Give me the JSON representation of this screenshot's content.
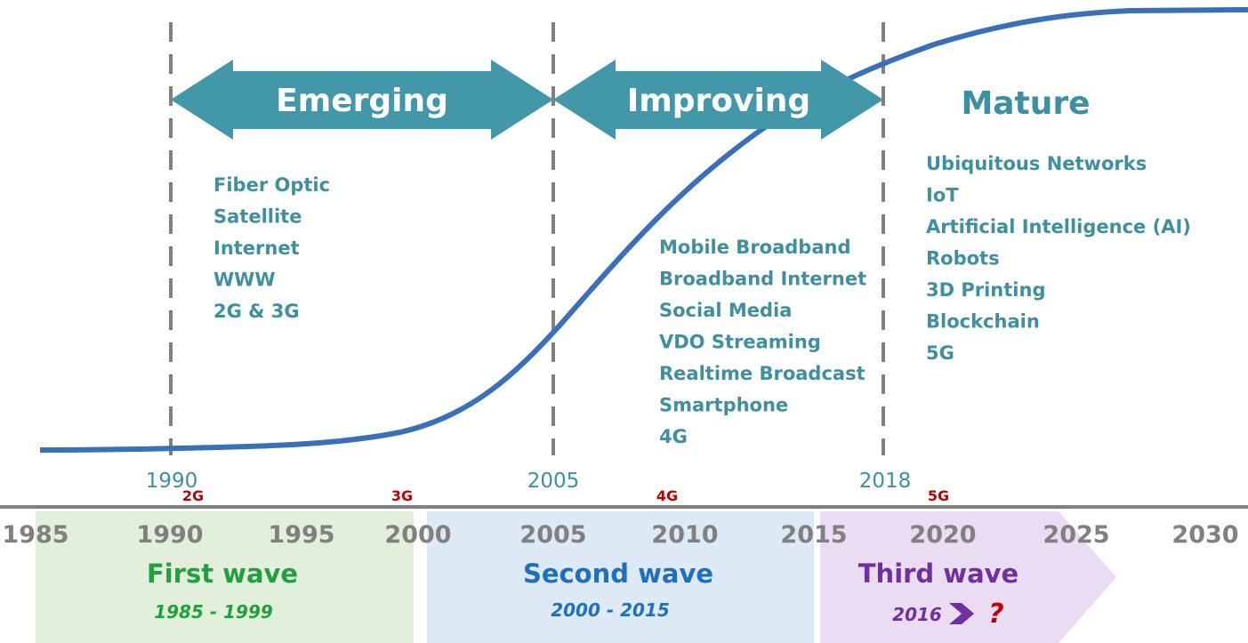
{
  "phases": [
    {
      "label": "Emerging",
      "items": [
        "Fiber Optic",
        "Satellite",
        "Internet",
        "WWW",
        "2G & 3G"
      ]
    },
    {
      "label": "Improving",
      "items": [
        "Mobile Broadband",
        "Broadband Internet",
        "Social Media",
        "VDO Streaming",
        "Realtime Broadcast",
        "Smartphone",
        "4G"
      ]
    },
    {
      "label": "Mature",
      "items": [
        "Ubiquitous Networks",
        "IoT",
        "Artificial Intelligence (AI)",
        "Robots",
        "3D Printing",
        "Blockchain",
        "5G"
      ]
    }
  ],
  "milestones": [
    "1990",
    "2005",
    "2018"
  ],
  "generations": [
    "2G",
    "3G",
    "4G",
    "5G"
  ],
  "axis_years": [
    "1985",
    "1990",
    "1995",
    "2000",
    "2005",
    "2010",
    "2015",
    "2020",
    "2025",
    "2030"
  ],
  "waves": [
    {
      "name": "First wave",
      "range": "1985 - 1999"
    },
    {
      "name": "Second wave",
      "range": "2000 - 2015"
    },
    {
      "name": "Third wave",
      "range": "2016",
      "suffix": "?"
    }
  ]
}
